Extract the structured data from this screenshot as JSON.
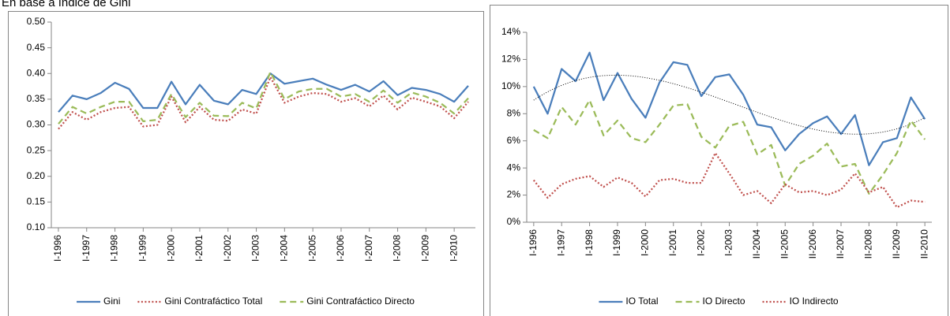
{
  "chart_data": [
    {
      "type": "line",
      "title": "En base a índice de Gini",
      "categories": [
        "I-1996",
        null,
        "I-1997",
        null,
        "I-1998",
        null,
        "I-1999",
        null,
        "I-2000",
        null,
        "I-2001",
        null,
        "I-2002",
        null,
        "I-2003",
        null,
        "I-2004",
        null,
        "I-2005",
        null,
        "I-2006",
        null,
        "I-2007",
        null,
        "I-2008",
        null,
        "I-2009",
        null,
        "I-2010",
        null
      ],
      "series": [
        {
          "name": "Gini",
          "color": "#4a7ebb",
          "style": "solid",
          "values": [
            0.325,
            0.357,
            0.35,
            0.362,
            0.382,
            0.37,
            0.333,
            0.333,
            0.384,
            0.34,
            0.378,
            0.347,
            0.34,
            0.368,
            0.36,
            0.4,
            0.38,
            0.385,
            0.39,
            0.378,
            0.368,
            0.378,
            0.365,
            0.385,
            0.358,
            0.372,
            0.368,
            0.36,
            0.345,
            0.376
          ]
        },
        {
          "name": "Gini Contrafáctico Total",
          "color": "#c0504d",
          "style": "dotted",
          "values": [
            0.292,
            0.325,
            0.31,
            0.325,
            0.333,
            0.335,
            0.297,
            0.3,
            0.355,
            0.305,
            0.335,
            0.31,
            0.308,
            0.33,
            0.322,
            0.393,
            0.343,
            0.355,
            0.362,
            0.36,
            0.345,
            0.352,
            0.336,
            0.357,
            0.33,
            0.353,
            0.345,
            0.336,
            0.313,
            0.345
          ]
        },
        {
          "name": "Gini Contrafáctico Directo",
          "color": "#9bbb59",
          "style": "dashed",
          "values": [
            0.302,
            0.335,
            0.322,
            0.335,
            0.345,
            0.345,
            0.307,
            0.31,
            0.36,
            0.315,
            0.343,
            0.318,
            0.317,
            0.343,
            0.332,
            0.403,
            0.35,
            0.365,
            0.37,
            0.37,
            0.355,
            0.36,
            0.345,
            0.367,
            0.343,
            0.363,
            0.355,
            0.343,
            0.322,
            0.352
          ]
        }
      ],
      "ylim": [
        0.1,
        0.5
      ],
      "yticks": [
        {
          "value": 0.1,
          "label": "0.10"
        },
        {
          "value": 0.15,
          "label": "0.15"
        },
        {
          "value": 0.2,
          "label": "0.20"
        },
        {
          "value": 0.25,
          "label": "0.25"
        },
        {
          "value": 0.3,
          "label": "0.30"
        },
        {
          "value": 0.35,
          "label": "0.35"
        },
        {
          "value": 0.4,
          "label": "0.40"
        },
        {
          "value": 0.45,
          "label": "0.45"
        },
        {
          "value": 0.5,
          "label": "0.50"
        }
      ],
      "grid": false,
      "legend": "bottom"
    },
    {
      "type": "line",
      "categories": [
        "I-1996",
        null,
        "I-1997",
        null,
        "I-1998",
        null,
        "I-1999",
        null,
        "I-2000",
        null,
        "I-2001",
        null,
        "I-2002",
        null,
        "I-2003",
        null,
        "II-2004",
        null,
        "II-2005",
        null,
        "II-2006",
        null,
        "II-2007",
        null,
        "II-2008",
        null,
        "II-2009",
        null,
        "II-2010"
      ],
      "series": [
        {
          "name": "IO Total",
          "color": "#4a7ebb",
          "style": "solid",
          "trendline": "polynomial",
          "values": [
            10,
            8,
            11.3,
            10.4,
            12.5,
            9,
            11,
            9.1,
            7.7,
            10.3,
            11.8,
            11.6,
            9.3,
            10.7,
            10.9,
            9.4,
            7.2,
            7.0,
            5.3,
            6.5,
            7.3,
            7.8,
            6.5,
            7.9,
            4.2,
            5.9,
            6.2,
            9.2,
            7.6
          ]
        },
        {
          "name": "IO Directo",
          "color": "#9bbb59",
          "style": "dashed",
          "values": [
            6.8,
            6.2,
            8.5,
            7.2,
            9.0,
            6.4,
            7.5,
            6.2,
            5.9,
            7.2,
            8.6,
            8.7,
            6.3,
            5.5,
            7.1,
            7.4,
            5.0,
            5.7,
            2.7,
            4.3,
            4.9,
            5.8,
            4.1,
            4.3,
            2.1,
            3.5,
            5.1,
            7.5,
            6.1
          ]
        },
        {
          "name": "IO Indirecto",
          "color": "#c0504d",
          "style": "dotted",
          "values": [
            3.1,
            1.8,
            2.8,
            3.2,
            3.4,
            2.6,
            3.3,
            2.9,
            1.9,
            3.1,
            3.2,
            2.9,
            2.9,
            5.1,
            3.6,
            2.0,
            2.3,
            1.4,
            2.8,
            2.2,
            2.3,
            2.0,
            2.4,
            3.6,
            2.2,
            2.6,
            1.1,
            1.6,
            1.5
          ]
        }
      ],
      "ylim": [
        0,
        14
      ],
      "yticks": [
        {
          "value": 0,
          "label": "0%"
        },
        {
          "value": 2,
          "label": "2%"
        },
        {
          "value": 4,
          "label": "4%"
        },
        {
          "value": 6,
          "label": "6%"
        },
        {
          "value": 8,
          "label": "8%"
        },
        {
          "value": 10,
          "label": "10%"
        },
        {
          "value": 12,
          "label": "12%"
        },
        {
          "value": 14,
          "label": "14%"
        }
      ],
      "grid": false,
      "legend": "bottom"
    }
  ]
}
